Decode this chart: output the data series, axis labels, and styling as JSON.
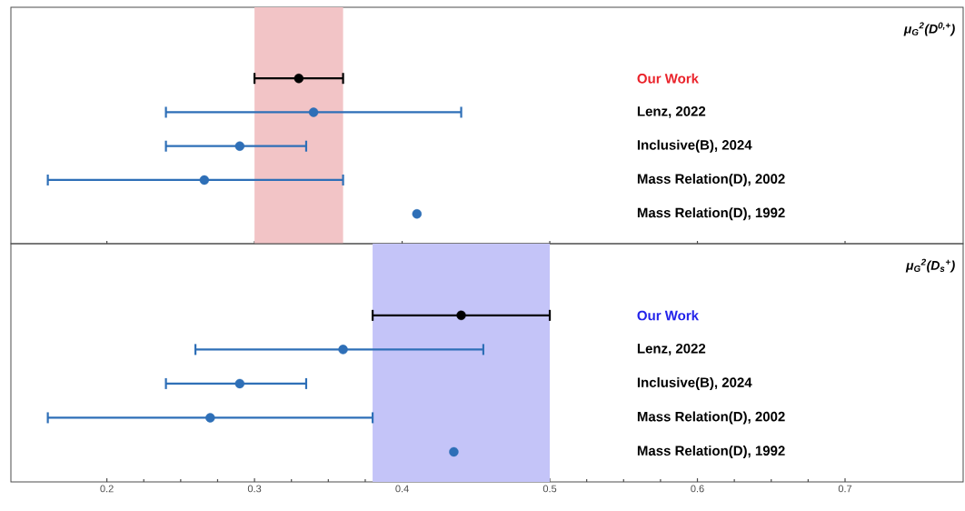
{
  "chart_data": [
    {
      "type": "scatter",
      "orientation": "horizontal",
      "title": "μ$_{G}$$^{2}$(D$^{0,+}$)",
      "categories": [
        "Our Work",
        "Lenz, 2022",
        "Inclusive(B), 2024",
        "Mass Relation(D), 2002",
        "Mass Relation(D), 1992"
      ],
      "values": [
        0.33,
        0.34,
        0.29,
        0.266,
        0.41
      ],
      "errors": [
        [
          0.3,
          0.36
        ],
        [
          0.24,
          0.44
        ],
        [
          0.24,
          0.335
        ],
        [
          0.16,
          0.36
        ],
        null
      ],
      "colors": [
        "#000000",
        "#2e6fb7",
        "#2e6fb7",
        "#2e6fb7",
        "#2e6fb7"
      ],
      "marker": "circle",
      "bands": [
        {
          "axis": "x",
          "from": 0.3,
          "to": 0.36,
          "color": "#f2c4c6"
        }
      ],
      "xlim": [
        0.135,
        0.78
      ],
      "xticks": [
        0.2,
        0.3,
        0.4,
        0.5,
        0.6,
        0.7
      ],
      "tick_labels": "y"
    },
    {
      "type": "scatter",
      "orientation": "horizontal",
      "title": "μ$_{G}$$^{2}$(D$_{s}$$^{+}$)",
      "categories": [
        "Our Work",
        "Lenz, 2022",
        "Inclusive(B), 2024",
        "Mass Relation(D), 2002",
        "Mass Relation(D), 1992"
      ],
      "values": [
        0.44,
        0.36,
        0.29,
        0.27,
        0.435
      ],
      "errors": [
        [
          0.38,
          0.5
        ],
        [
          0.26,
          0.455
        ],
        [
          0.24,
          0.335
        ],
        [
          0.16,
          0.38
        ],
        null
      ],
      "colors": [
        "#000000",
        "#2e6fb7",
        "#2e6fb7",
        "#2e6fb7",
        "#2e6fb7"
      ],
      "marker": "circle",
      "bands": [
        {
          "axis": "x",
          "from": 0.38,
          "to": 0.5,
          "color": "#c4c4f8"
        }
      ],
      "xlim": [
        0.135,
        0.78
      ],
      "xticks": [
        0.2,
        0.3,
        0.4,
        0.5,
        0.6,
        0.7
      ]
    }
  ]
}
